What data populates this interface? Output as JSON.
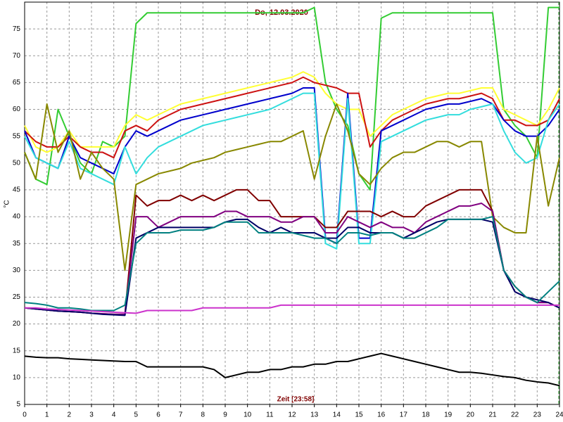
{
  "chart_data": {
    "type": "line",
    "title": "Do, 12.03.2020",
    "x_label": "Zeit [23:58]",
    "y_label": "°C",
    "x": [
      0,
      0.5,
      1,
      1.5,
      2,
      2.5,
      3,
      3.5,
      4,
      4.5,
      5,
      5.5,
      6,
      6.5,
      7,
      7.5,
      8,
      8.5,
      9,
      9.5,
      10,
      10.5,
      11,
      11.5,
      12,
      12.5,
      13,
      13.5,
      14,
      14.5,
      15,
      15.5,
      16,
      16.5,
      17,
      17.5,
      18,
      18.5,
      19,
      19.5,
      20,
      20.5,
      21,
      21.5,
      22,
      22.5,
      23,
      23.5,
      24
    ],
    "xlim": [
      0,
      24
    ],
    "xticks": [
      0,
      1,
      2,
      3,
      4,
      5,
      6,
      7,
      8,
      9,
      10,
      11,
      12,
      13,
      14,
      15,
      16,
      17,
      18,
      19,
      20,
      21,
      22,
      23,
      24
    ],
    "ylim": [
      5,
      80
    ],
    "yticks": [
      5,
      10,
      15,
      20,
      25,
      30,
      35,
      40,
      45,
      50,
      55,
      60,
      65,
      70,
      75
    ],
    "grid": true,
    "series": [
      {
        "color": "#33cc33",
        "values": [
          52,
          47,
          46,
          60,
          55,
          50,
          48,
          54,
          53,
          55,
          76,
          78,
          78,
          78,
          78,
          78,
          78,
          78,
          78,
          78,
          78,
          78,
          78,
          78,
          78,
          78,
          79,
          65,
          60,
          57,
          48,
          45,
          77,
          78,
          78,
          78,
          78,
          78,
          78,
          78,
          78,
          78,
          78,
          60,
          57,
          55,
          51,
          79,
          79
        ]
      },
      {
        "color": "#ffff33",
        "values": [
          57,
          53,
          52,
          53,
          56,
          53,
          53,
          53,
          53,
          57,
          59,
          58,
          59,
          60,
          61,
          61.5,
          62,
          62.5,
          63,
          63.5,
          64,
          64.5,
          65,
          65.5,
          66,
          67,
          66,
          63,
          61,
          60,
          60,
          55,
          57,
          59,
          60,
          61,
          62,
          62.5,
          63,
          63,
          63.5,
          64,
          64,
          60,
          59,
          58,
          57,
          60,
          64
        ]
      },
      {
        "color": "#cc1111",
        "values": [
          56,
          54,
          53,
          53,
          55,
          53,
          52,
          52,
          51,
          56,
          57,
          56,
          58,
          59,
          60,
          60.5,
          61,
          61.5,
          62,
          62.5,
          63,
          63.5,
          64,
          64.5,
          65,
          66,
          65,
          64.5,
          64,
          63,
          63,
          53,
          56,
          58,
          59,
          60,
          61,
          61.5,
          62,
          62,
          62.5,
          63,
          62,
          58,
          58,
          57,
          57,
          58,
          62
        ]
      },
      {
        "color": "#0000cc",
        "values": [
          56,
          51,
          50,
          49,
          55,
          51,
          50,
          49,
          48,
          53,
          56,
          55,
          56,
          57,
          58,
          58.5,
          59,
          59.5,
          60,
          60.5,
          61,
          61.5,
          62,
          62.5,
          63,
          64,
          64,
          36,
          35,
          63,
          36,
          36,
          56,
          57,
          58,
          59,
          60,
          60.5,
          61,
          61,
          61.5,
          62,
          61,
          58,
          56,
          55,
          55,
          57,
          60
        ]
      },
      {
        "color": "#33dddd",
        "values": [
          55,
          51,
          50,
          49,
          54,
          49,
          48,
          47,
          46,
          53,
          48,
          51,
          53,
          54,
          55,
          56,
          57,
          57.5,
          58,
          58.5,
          59,
          59.5,
          60,
          61,
          62,
          63,
          63,
          35,
          34,
          62,
          35,
          35,
          54,
          55,
          56,
          57,
          58,
          58.5,
          59,
          59,
          60,
          60.5,
          61,
          56,
          52,
          50,
          51,
          58,
          61
        ]
      },
      {
        "color": "#888800",
        "values": [
          52,
          47,
          61,
          52,
          56,
          47,
          52,
          49,
          47,
          30,
          46,
          47,
          48,
          48.5,
          49,
          50,
          50.5,
          51,
          52,
          52.5,
          53,
          53.5,
          54,
          54,
          55,
          56,
          47,
          55,
          61,
          56,
          48,
          46,
          49,
          51,
          52,
          52,
          53,
          54,
          54,
          53,
          54,
          54,
          40,
          38,
          37,
          37,
          55,
          42,
          51
        ]
      },
      {
        "color": "#800000",
        "values": [
          23,
          22.8,
          22.6,
          22.4,
          22.3,
          22.2,
          22,
          21.9,
          21.8,
          21.8,
          44,
          42,
          43,
          43,
          44,
          43,
          44,
          43,
          44,
          45,
          45,
          43,
          43,
          40,
          40,
          40,
          40,
          38,
          38,
          41,
          41,
          41,
          40,
          41,
          40,
          40,
          42,
          43,
          44,
          45,
          45,
          45,
          41,
          30,
          27,
          25,
          24,
          24,
          23
        ]
      },
      {
        "color": "#800080",
        "values": [
          23,
          22.8,
          22.6,
          22.4,
          22.3,
          22.2,
          22,
          21.9,
          21.8,
          21.8,
          40,
          40,
          38,
          39,
          40,
          40,
          40,
          40,
          41,
          41,
          40,
          40,
          40,
          39,
          39,
          40,
          40,
          37,
          37,
          40,
          39,
          38,
          39,
          38,
          38,
          37,
          39,
          40,
          41,
          42,
          42,
          42.5,
          41,
          30,
          26,
          25,
          24,
          24,
          23
        ]
      },
      {
        "color": "#000066",
        "values": [
          23,
          22.8,
          22.6,
          22.4,
          22.3,
          22.2,
          22,
          21.8,
          21.7,
          21.6,
          36,
          37,
          38,
          38,
          38,
          38,
          38,
          38,
          39,
          39.5,
          39.5,
          38,
          37,
          38,
          37,
          37,
          37,
          36,
          36,
          38,
          38,
          37,
          37,
          37,
          36,
          37,
          38,
          39,
          39.5,
          39.5,
          39.5,
          39.5,
          39,
          30,
          26,
          25,
          24.5,
          24,
          23
        ]
      },
      {
        "color": "#008080",
        "values": [
          24,
          23.8,
          23.5,
          23,
          23,
          22.8,
          22.5,
          22.5,
          22.5,
          23.5,
          35,
          37,
          37,
          37,
          37.5,
          37.5,
          37.5,
          38,
          39,
          39,
          39,
          37,
          37,
          37,
          37,
          36.5,
          36,
          36,
          35,
          37,
          37,
          36.5,
          37,
          37,
          36,
          36,
          37,
          38,
          39.5,
          39.5,
          39.5,
          39.5,
          40,
          30,
          27,
          25,
          24,
          26,
          28
        ]
      },
      {
        "color": "#cc33cc",
        "values": [
          23,
          23,
          22.8,
          22.7,
          22.6,
          22.5,
          22.4,
          22.3,
          22.2,
          22.1,
          22,
          22.5,
          22.5,
          22.5,
          22.5,
          22.5,
          23,
          23,
          23,
          23,
          23,
          23,
          23,
          23.5,
          23.5,
          23.5,
          23.5,
          23.5,
          23.5,
          23.5,
          23.5,
          23.5,
          23.5,
          23.5,
          23.5,
          23.5,
          23.5,
          23.5,
          23.5,
          23.5,
          23.5,
          23.5,
          23.5,
          23.5,
          23.5,
          23.5,
          23.5,
          23.5,
          23.5
        ]
      },
      {
        "color": "#000000",
        "values": [
          14,
          13.8,
          13.7,
          13.7,
          13.5,
          13.4,
          13.3,
          13.2,
          13.1,
          13,
          13,
          12,
          12,
          12,
          12,
          12,
          12,
          11.5,
          10,
          10.5,
          11,
          11,
          11.5,
          11.5,
          12,
          12,
          12.5,
          12.5,
          13,
          13,
          13.5,
          14,
          14.5,
          14,
          13.5,
          13,
          12.5,
          12,
          11.5,
          11,
          11,
          10.8,
          10.5,
          10.2,
          10,
          9.5,
          9.2,
          9,
          8.5
        ]
      }
    ]
  }
}
